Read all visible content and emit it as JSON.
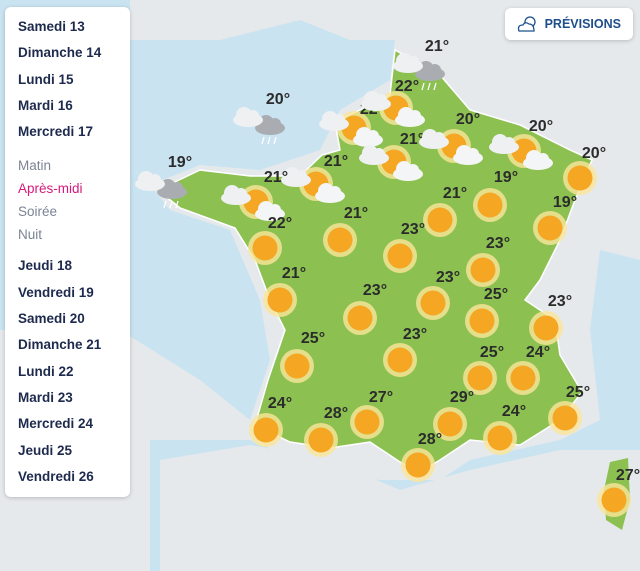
{
  "sidebar": {
    "days_before": [
      "Samedi 13",
      "Dimanche 14",
      "Lundi 15",
      "Mardi 16",
      "Mercredi 17"
    ],
    "periods": [
      {
        "label": "Matin"
      },
      {
        "label": "Après-midi",
        "active": true
      },
      {
        "label": "Soirée"
      },
      {
        "label": "Nuit"
      }
    ],
    "days_after": [
      "Jeudi 18",
      "Vendredi 19",
      "Samedi 20",
      "Dimanche 21",
      "Lundi 22",
      "Mardi 23",
      "Mercredi 24",
      "Jeudi 25",
      "Vendredi 26"
    ]
  },
  "button": {
    "label": "PRÉVISIONS"
  },
  "map": {
    "temperatures": [
      "20°",
      "22°",
      "22°",
      "21°",
      "21°",
      "20°",
      "20°",
      "20°",
      "19°",
      "21°",
      "21°",
      "19°",
      "21°",
      "19°",
      "22°",
      "21°",
      "23°",
      "23°",
      "23°",
      "21°",
      "23°",
      "25°",
      "23°",
      "23°",
      "25°",
      "25°",
      "24°",
      "24°",
      "28°",
      "27°",
      "29°",
      "24°",
      "25°",
      "28°",
      "27°"
    ]
  }
}
